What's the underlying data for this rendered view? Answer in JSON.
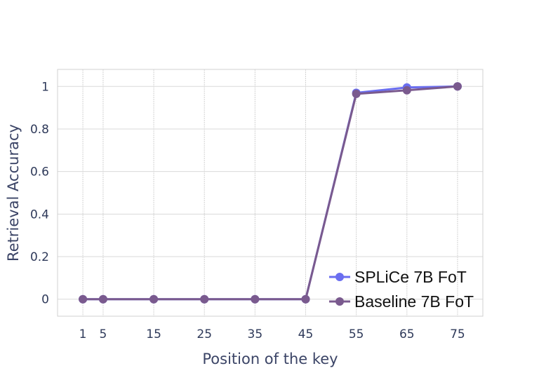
{
  "chart_data": {
    "type": "line",
    "xlabel": "Position of the key",
    "ylabel": "Retrieval Accuracy",
    "x": [
      1,
      5,
      15,
      25,
      35,
      45,
      55,
      65,
      75
    ],
    "x_ticks": [
      "1",
      "5",
      "15",
      "25",
      "35",
      "45",
      "55",
      "65",
      "75"
    ],
    "y_ticks": [
      "0",
      "0.2",
      "0.4",
      "0.6",
      "0.8",
      "1"
    ],
    "xlim": [
      -4,
      80
    ],
    "ylim": [
      -0.08,
      1.08
    ],
    "grid": true,
    "legend_position": "bottom-right",
    "series": [
      {
        "name": "SPLiCe 7B FoT",
        "color": "#6a6ef0",
        "values": [
          0,
          0,
          0,
          0,
          0,
          0,
          0.97,
          0.995,
          1.0
        ]
      },
      {
        "name": "Baseline 7B FoT",
        "color": "#7a5a8e",
        "values": [
          0,
          0,
          0,
          0,
          0,
          0,
          0.965,
          0.982,
          1.0
        ]
      }
    ]
  }
}
